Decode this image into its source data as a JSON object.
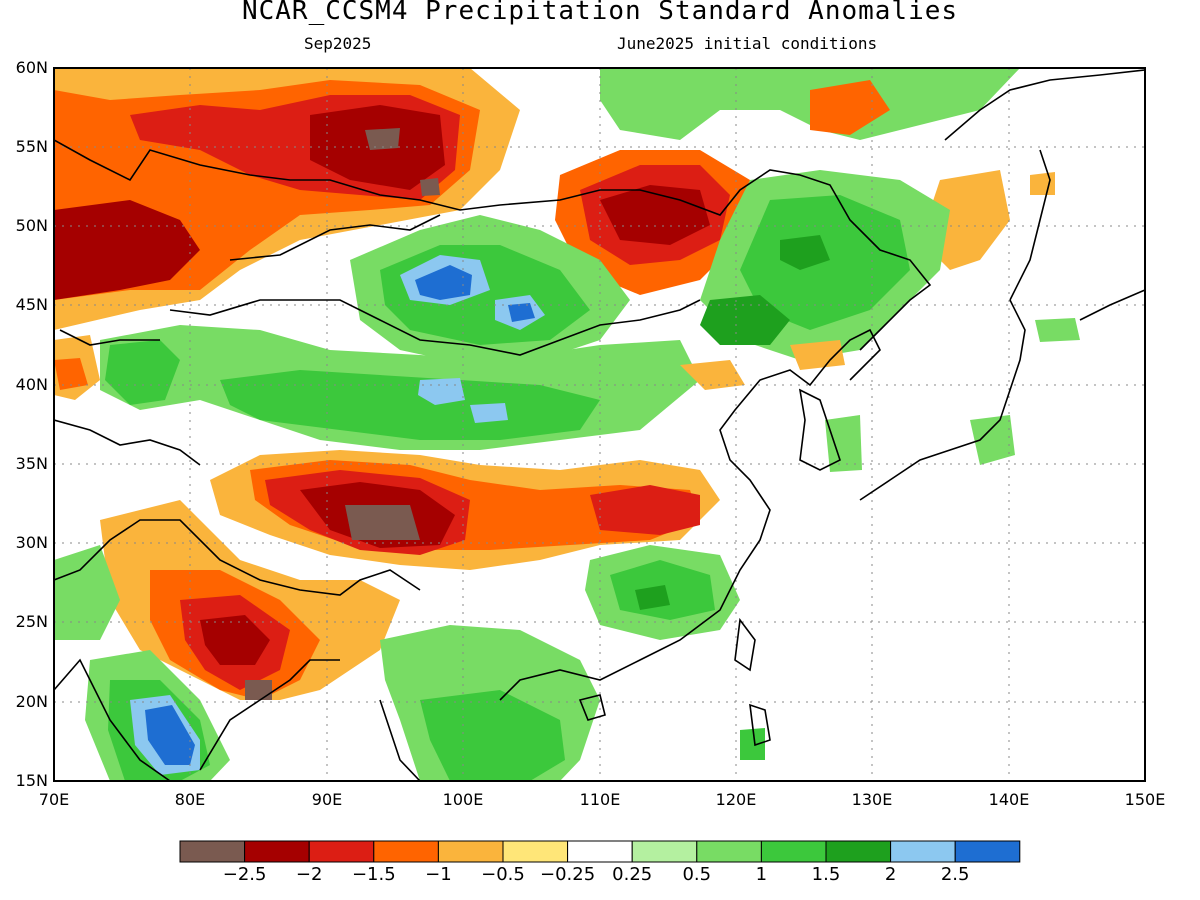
{
  "title": "NCAR_CCSM4 Precipitation Standard Anomalies",
  "subtitle_left": "Sep2025",
  "subtitle_right": "June2025 initial conditions",
  "map": {
    "lon_range": [
      70,
      150
    ],
    "lat_range": [
      15,
      60
    ],
    "x_ticks": [
      "70E",
      "80E",
      "90E",
      "100E",
      "110E",
      "120E",
      "130E",
      "140E",
      "150E"
    ],
    "y_ticks": [
      "60N",
      "55N",
      "50N",
      "45N",
      "40N",
      "35N",
      "30N",
      "25N",
      "20N",
      "15N"
    ],
    "grid": "dotted"
  },
  "colorbar": {
    "colors": [
      "#7a5a50",
      "#a50000",
      "#dc1e14",
      "#ff6400",
      "#fab43c",
      "#ffe678",
      "#ffffff",
      "#b4f0a0",
      "#78dc64",
      "#3cc83c",
      "#1ea01e",
      "#8cc8f0",
      "#1e6ed2"
    ],
    "labels": [
      "−2.5",
      "−2",
      "−1.5",
      "−1",
      "−0.5",
      "−0.25",
      "0.25",
      "0.5",
      "1",
      "1.5",
      "2",
      "2.5"
    ]
  }
}
